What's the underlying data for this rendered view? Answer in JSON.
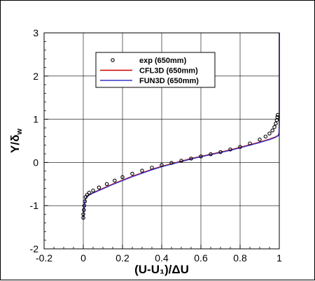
{
  "chart_data": {
    "type": "line",
    "xlabel": "(U-U₁)/ΔU",
    "ylabel": "Y/δ",
    "ylabel_subscript": "w",
    "xlim": [
      -0.2,
      1.0
    ],
    "ylim": [
      -2,
      3
    ],
    "xticks": [
      -0.2,
      0,
      0.2,
      0.4,
      0.6,
      0.8,
      1
    ],
    "xtick_labels": [
      "-0.2",
      "0",
      "0.2",
      "0.4",
      "0.6",
      "0.8",
      "1"
    ],
    "yticks": [
      -2,
      -1,
      0,
      1,
      2,
      3
    ],
    "ytick_labels": [
      "-2",
      "-1",
      "0",
      "1",
      "2",
      "3"
    ],
    "grid": true,
    "legend": {
      "placement": "top-center"
    },
    "series": [
      {
        "name": "exp (650mm)",
        "kind": "scatter",
        "marker": "circle-open",
        "color": "#000000",
        "points": [
          [
            0.0,
            -1.28
          ],
          [
            0.0,
            -1.2
          ],
          [
            0.003,
            -1.1
          ],
          [
            0.005,
            -1.0
          ],
          [
            0.008,
            -0.9
          ],
          [
            0.012,
            -0.8
          ],
          [
            0.02,
            -0.75
          ],
          [
            0.03,
            -0.7
          ],
          [
            0.05,
            -0.65
          ],
          [
            0.08,
            -0.58
          ],
          [
            0.12,
            -0.5
          ],
          [
            0.16,
            -0.42
          ],
          [
            0.2,
            -0.34
          ],
          [
            0.25,
            -0.26
          ],
          [
            0.3,
            -0.19
          ],
          [
            0.35,
            -0.12
          ],
          [
            0.4,
            -0.06
          ],
          [
            0.45,
            -0.01
          ],
          [
            0.5,
            0.04
          ],
          [
            0.55,
            0.09
          ],
          [
            0.6,
            0.14
          ],
          [
            0.65,
            0.19
          ],
          [
            0.7,
            0.24
          ],
          [
            0.75,
            0.3
          ],
          [
            0.8,
            0.36
          ],
          [
            0.85,
            0.44
          ],
          [
            0.9,
            0.53
          ],
          [
            0.93,
            0.6
          ],
          [
            0.95,
            0.67
          ],
          [
            0.965,
            0.74
          ],
          [
            0.975,
            0.82
          ],
          [
            0.982,
            0.9
          ],
          [
            0.987,
            0.98
          ],
          [
            0.99,
            1.05
          ],
          [
            0.992,
            1.1
          ]
        ]
      },
      {
        "name": "CFL3D (650mm)",
        "kind": "line",
        "color": "#cc0000",
        "points": [
          [
            0.0,
            -1.25
          ],
          [
            0.005,
            -1.0
          ],
          [
            0.01,
            -0.85
          ],
          [
            0.02,
            -0.77
          ],
          [
            0.05,
            -0.7
          ],
          [
            0.1,
            -0.6
          ],
          [
            0.15,
            -0.5
          ],
          [
            0.2,
            -0.41
          ],
          [
            0.25,
            -0.32
          ],
          [
            0.3,
            -0.24
          ],
          [
            0.35,
            -0.16
          ],
          [
            0.4,
            -0.09
          ],
          [
            0.45,
            -0.03
          ],
          [
            0.5,
            0.03
          ],
          [
            0.55,
            0.09
          ],
          [
            0.6,
            0.14
          ],
          [
            0.65,
            0.19
          ],
          [
            0.7,
            0.24
          ],
          [
            0.75,
            0.29
          ],
          [
            0.8,
            0.35
          ],
          [
            0.85,
            0.41
          ],
          [
            0.9,
            0.47
          ],
          [
            0.95,
            0.54
          ],
          [
            0.98,
            0.59
          ],
          [
            0.995,
            0.63
          ],
          [
            0.999,
            0.7
          ],
          [
            1.0,
            1.0
          ],
          [
            1.0,
            3.0
          ]
        ]
      },
      {
        "name": "FUN3D (650mm)",
        "kind": "line",
        "color": "#3333cc",
        "points": [
          [
            0.0,
            -1.3
          ],
          [
            0.005,
            -1.0
          ],
          [
            0.01,
            -0.86
          ],
          [
            0.02,
            -0.78
          ],
          [
            0.05,
            -0.71
          ],
          [
            0.1,
            -0.61
          ],
          [
            0.15,
            -0.51
          ],
          [
            0.2,
            -0.42
          ],
          [
            0.25,
            -0.33
          ],
          [
            0.3,
            -0.25
          ],
          [
            0.35,
            -0.17
          ],
          [
            0.4,
            -0.1
          ],
          [
            0.45,
            -0.04
          ],
          [
            0.5,
            0.02
          ],
          [
            0.55,
            0.08
          ],
          [
            0.6,
            0.13
          ],
          [
            0.65,
            0.18
          ],
          [
            0.7,
            0.23
          ],
          [
            0.75,
            0.28
          ],
          [
            0.8,
            0.34
          ],
          [
            0.85,
            0.4
          ],
          [
            0.9,
            0.46
          ],
          [
            0.95,
            0.53
          ],
          [
            0.98,
            0.58
          ],
          [
            0.995,
            0.62
          ],
          [
            0.999,
            0.68
          ],
          [
            1.0,
            1.0
          ],
          [
            1.0,
            3.0
          ]
        ]
      }
    ]
  }
}
